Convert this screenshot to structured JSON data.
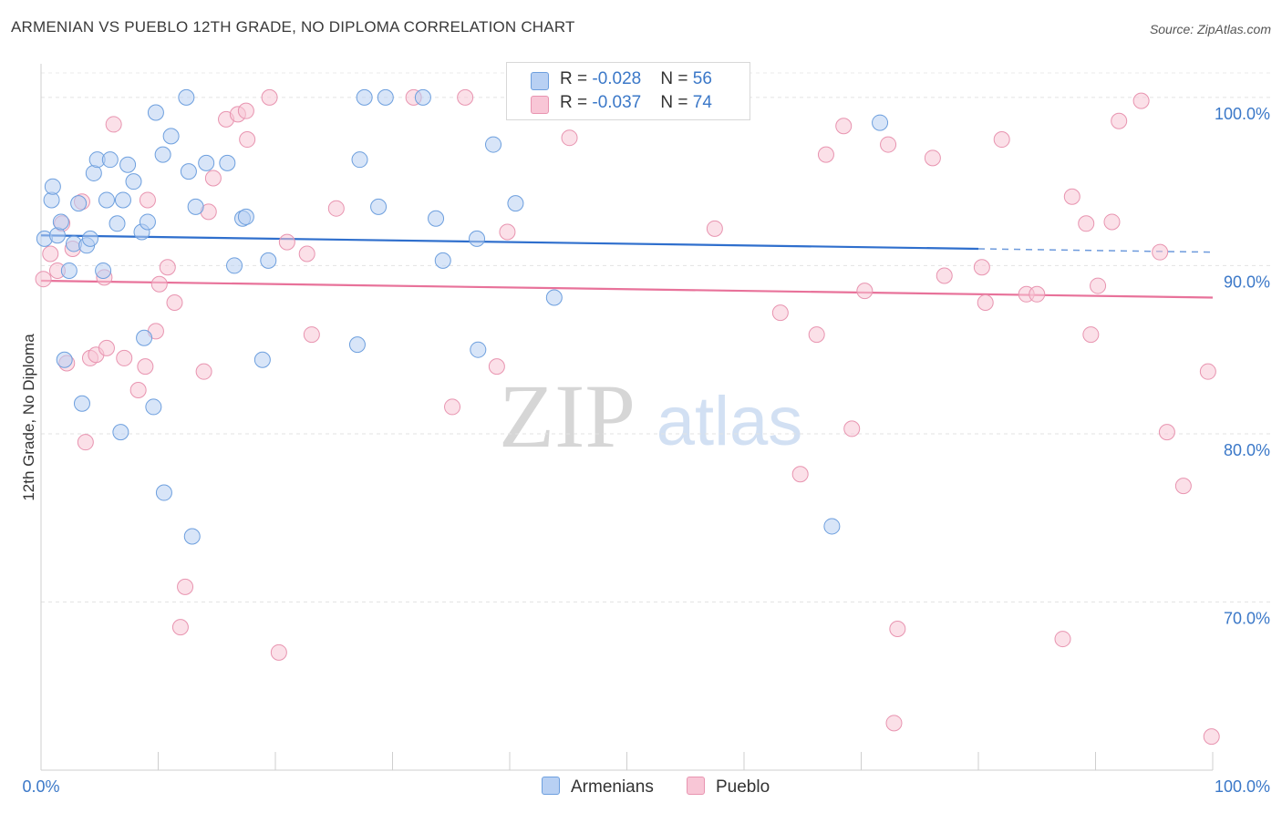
{
  "header": {
    "title": "ARMENIAN VS PUEBLO 12TH GRADE, NO DIPLOMA CORRELATION CHART",
    "source": "Source: ZipAtlas.com"
  },
  "watermark": {
    "zip": "ZIP",
    "atlas": "atlas"
  },
  "colors": {
    "armenians_fill": "#b8d0f3",
    "armenians_stroke": "#6d9fde",
    "armenians_line": "#2f6fcd",
    "pueblo_fill": "#f8c6d6",
    "pueblo_stroke": "#e894b0",
    "pueblo_line": "#e8729a",
    "axis_label": "#3b78c8"
  },
  "legend": {
    "armenians": {
      "r_label": "R = ",
      "r_value": "-0.028",
      "n_label": "N = ",
      "n_value": "56"
    },
    "pueblo": {
      "r_label": "R = ",
      "r_value": "-0.037",
      "n_label": "N = ",
      "n_value": "74"
    }
  },
  "bottom_legend": {
    "armenians": "Armenians",
    "pueblo": "Pueblo"
  },
  "chart_data": {
    "type": "scatter",
    "title": "ARMENIAN VS PUEBLO 12TH GRADE, NO DIPLOMA CORRELATION CHART",
    "ylabel": "12th Grade, No Diploma",
    "xlabel": "",
    "xlim": [
      0,
      100
    ],
    "ylim": [
      60,
      102
    ],
    "x_tick_labels": [
      "0.0%",
      "100.0%"
    ],
    "y_ticks": [
      {
        "value": 100,
        "label": "100.0%"
      },
      {
        "value": 90,
        "label": "90.0%"
      },
      {
        "value": 80,
        "label": "80.0%"
      },
      {
        "value": 70,
        "label": "70.0%"
      }
    ],
    "series": [
      {
        "name": "Armenians",
        "trend": {
          "x0": 0,
          "y0": 91.8,
          "x1": 80,
          "y1": 91.0,
          "dashed_to_x": 100,
          "dashed_to_y": 90.8
        },
        "points": [
          [
            0.3,
            91.6
          ],
          [
            0.9,
            93.9
          ],
          [
            1.0,
            94.7
          ],
          [
            1.4,
            91.8
          ],
          [
            1.7,
            92.6
          ],
          [
            2.0,
            84.4
          ],
          [
            2.4,
            89.7
          ],
          [
            2.8,
            91.3
          ],
          [
            3.2,
            93.7
          ],
          [
            3.5,
            81.8
          ],
          [
            3.9,
            91.2
          ],
          [
            4.2,
            91.6
          ],
          [
            4.5,
            95.5
          ],
          [
            4.8,
            96.3
          ],
          [
            5.3,
            89.7
          ],
          [
            5.6,
            93.9
          ],
          [
            5.9,
            96.3
          ],
          [
            6.5,
            92.5
          ],
          [
            6.8,
            80.1
          ],
          [
            7.0,
            93.9
          ],
          [
            7.4,
            96.0
          ],
          [
            7.9,
            95.0
          ],
          [
            8.6,
            92.0
          ],
          [
            8.8,
            85.7
          ],
          [
            9.1,
            92.6
          ],
          [
            9.6,
            81.6
          ],
          [
            9.8,
            99.1
          ],
          [
            10.4,
            96.6
          ],
          [
            10.5,
            76.5
          ],
          [
            11.1,
            97.7
          ],
          [
            12.4,
            100.0
          ],
          [
            12.6,
            95.6
          ],
          [
            12.9,
            73.9
          ],
          [
            13.2,
            93.5
          ],
          [
            14.1,
            96.1
          ],
          [
            15.9,
            96.1
          ],
          [
            16.5,
            90.0
          ],
          [
            17.2,
            92.8
          ],
          [
            17.5,
            92.9
          ],
          [
            18.9,
            84.4
          ],
          [
            19.4,
            90.3
          ],
          [
            27.0,
            85.3
          ],
          [
            27.2,
            96.3
          ],
          [
            27.6,
            100.0
          ],
          [
            28.8,
            93.5
          ],
          [
            29.4,
            100.0
          ],
          [
            32.6,
            100.0
          ],
          [
            33.7,
            92.8
          ],
          [
            34.3,
            90.3
          ],
          [
            37.2,
            91.6
          ],
          [
            37.3,
            85.0
          ],
          [
            38.6,
            97.2
          ],
          [
            40.5,
            93.7
          ],
          [
            43.8,
            88.1
          ],
          [
            67.5,
            74.5
          ],
          [
            71.6,
            98.5
          ]
        ]
      },
      {
        "name": "Pueblo",
        "trend": {
          "x0": 0,
          "y0": 89.1,
          "x1": 100,
          "y1": 88.1
        },
        "points": [
          [
            0.2,
            89.2
          ],
          [
            0.8,
            90.7
          ],
          [
            1.4,
            89.7
          ],
          [
            1.8,
            92.5
          ],
          [
            2.2,
            84.2
          ],
          [
            2.7,
            91.0
          ],
          [
            3.5,
            93.8
          ],
          [
            3.8,
            79.5
          ],
          [
            4.2,
            84.5
          ],
          [
            4.7,
            84.7
          ],
          [
            5.4,
            89.3
          ],
          [
            5.6,
            85.1
          ],
          [
            6.2,
            98.4
          ],
          [
            7.1,
            84.5
          ],
          [
            8.3,
            82.6
          ],
          [
            8.9,
            84.0
          ],
          [
            9.1,
            93.9
          ],
          [
            9.8,
            86.1
          ],
          [
            10.1,
            88.9
          ],
          [
            10.8,
            89.9
          ],
          [
            11.4,
            87.8
          ],
          [
            11.9,
            68.5
          ],
          [
            12.3,
            70.9
          ],
          [
            13.9,
            83.7
          ],
          [
            14.3,
            93.2
          ],
          [
            14.7,
            95.2
          ],
          [
            15.8,
            98.7
          ],
          [
            16.8,
            99.0
          ],
          [
            17.5,
            99.2
          ],
          [
            17.6,
            97.5
          ],
          [
            19.5,
            100.0
          ],
          [
            20.3,
            67.0
          ],
          [
            21.0,
            91.4
          ],
          [
            22.7,
            90.7
          ],
          [
            23.1,
            85.9
          ],
          [
            25.2,
            93.4
          ],
          [
            31.8,
            100.0
          ],
          [
            35.1,
            81.6
          ],
          [
            36.2,
            100.0
          ],
          [
            38.9,
            84.0
          ],
          [
            39.8,
            92.0
          ],
          [
            45.1,
            97.6
          ],
          [
            46.2,
            100.0
          ],
          [
            57.5,
            92.2
          ],
          [
            63.1,
            87.2
          ],
          [
            64.8,
            77.6
          ],
          [
            66.2,
            85.9
          ],
          [
            67.0,
            96.6
          ],
          [
            68.5,
            98.3
          ],
          [
            69.2,
            80.3
          ],
          [
            70.3,
            88.5
          ],
          [
            72.3,
            97.2
          ],
          [
            73.1,
            68.4
          ],
          [
            72.8,
            62.8
          ],
          [
            76.1,
            96.4
          ],
          [
            77.1,
            89.4
          ],
          [
            80.3,
            89.9
          ],
          [
            80.6,
            87.8
          ],
          [
            82.0,
            97.5
          ],
          [
            84.1,
            88.3
          ],
          [
            85.0,
            88.3
          ],
          [
            87.2,
            67.8
          ],
          [
            88.0,
            94.1
          ],
          [
            89.2,
            92.5
          ],
          [
            89.6,
            85.9
          ],
          [
            90.2,
            88.8
          ],
          [
            91.4,
            92.6
          ],
          [
            92.0,
            98.6
          ],
          [
            93.9,
            99.8
          ],
          [
            95.5,
            90.8
          ],
          [
            96.1,
            80.1
          ],
          [
            97.5,
            76.9
          ],
          [
            99.6,
            83.7
          ],
          [
            99.9,
            62.0
          ]
        ]
      }
    ]
  }
}
